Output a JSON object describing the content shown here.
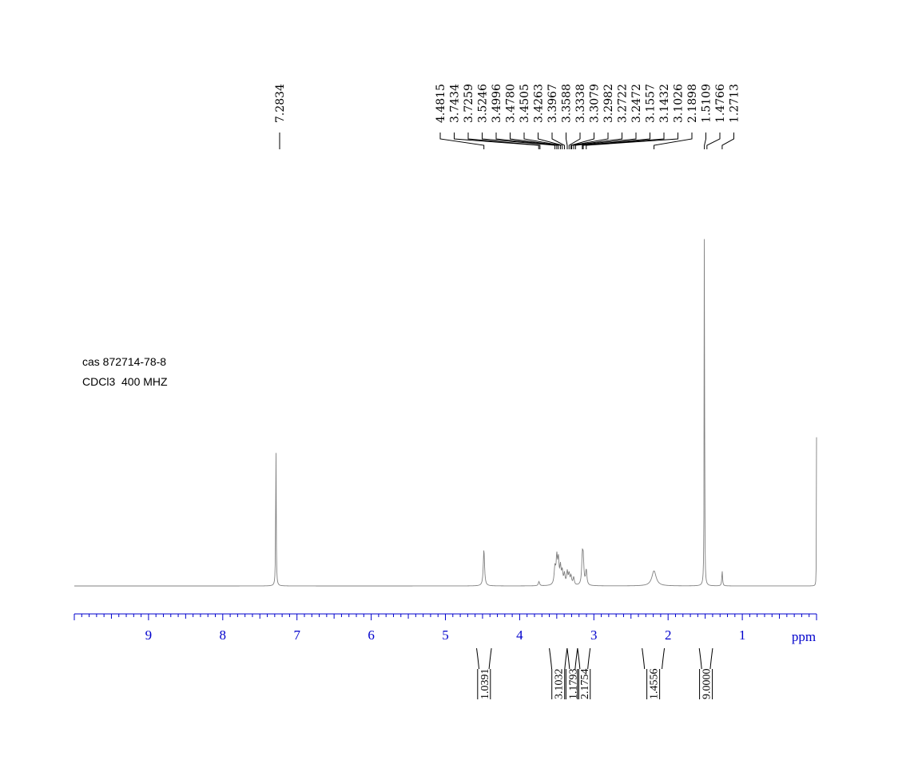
{
  "annotations": {
    "line1": "cas 872714-78-8",
    "line2": "CDCl3  400 MHZ"
  },
  "chart_data": {
    "type": "line",
    "xlabel": "ppm",
    "xlim": [
      10.0,
      0.0
    ],
    "x_reversed": true,
    "x_ticks": [
      9,
      8,
      7,
      6,
      5,
      4,
      3,
      2,
      1
    ],
    "peak_labels": [
      "7.2834",
      "4.4815",
      "3.7434",
      "3.7259",
      "3.5246",
      "3.4996",
      "3.4780",
      "3.4505",
      "3.4263",
      "3.3967",
      "3.3588",
      "3.3338",
      "3.3079",
      "3.2982",
      "3.2722",
      "3.2472",
      "3.1557",
      "3.1432",
      "3.1026",
      "2.1898",
      "1.5109",
      "1.4766",
      "1.2713"
    ],
    "integrals": [
      {
        "label": "1.0391",
        "from": 4.58,
        "to": 4.38
      },
      {
        "label": "3.1032",
        "from": 3.6,
        "to": 3.36
      },
      {
        "label": "1.1793",
        "from": 3.36,
        "to": 3.22
      },
      {
        "label": "2.1754",
        "from": 3.22,
        "to": 3.05
      },
      {
        "label": "1.4556",
        "from": 2.35,
        "to": 2.05
      },
      {
        "label": "9.0000",
        "from": 1.58,
        "to": 1.4
      }
    ],
    "signals": [
      {
        "ppm": 7.2834,
        "height": 0.345,
        "width": 0.004
      },
      {
        "ppm": 4.4815,
        "height": 0.085,
        "width": 0.01
      },
      {
        "ppm": 3.74,
        "height": 0.01,
        "width": 0.01
      },
      {
        "ppm": 3.5246,
        "height": 0.04,
        "width": 0.012
      },
      {
        "ppm": 3.4996,
        "height": 0.06,
        "width": 0.01
      },
      {
        "ppm": 3.478,
        "height": 0.055,
        "width": 0.01
      },
      {
        "ppm": 3.4505,
        "height": 0.04,
        "width": 0.01
      },
      {
        "ppm": 3.4263,
        "height": 0.03,
        "width": 0.01
      },
      {
        "ppm": 3.3967,
        "height": 0.025,
        "width": 0.01
      },
      {
        "ppm": 3.3588,
        "height": 0.03,
        "width": 0.01
      },
      {
        "ppm": 3.3338,
        "height": 0.025,
        "width": 0.01
      },
      {
        "ppm": 3.3079,
        "height": 0.02,
        "width": 0.01
      },
      {
        "ppm": 3.2722,
        "height": 0.018,
        "width": 0.01
      },
      {
        "ppm": 3.1557,
        "height": 0.06,
        "width": 0.01
      },
      {
        "ppm": 3.1432,
        "height": 0.055,
        "width": 0.01
      },
      {
        "ppm": 3.1026,
        "height": 0.035,
        "width": 0.01
      },
      {
        "ppm": 2.1898,
        "height": 0.035,
        "width": 0.035
      },
      {
        "ppm": 1.5109,
        "height": 1.0,
        "width": 0.003
      },
      {
        "ppm": 1.2713,
        "height": 0.035,
        "width": 0.006
      },
      {
        "ppm": 0.0,
        "height": 0.345,
        "width": 0.002
      }
    ]
  }
}
